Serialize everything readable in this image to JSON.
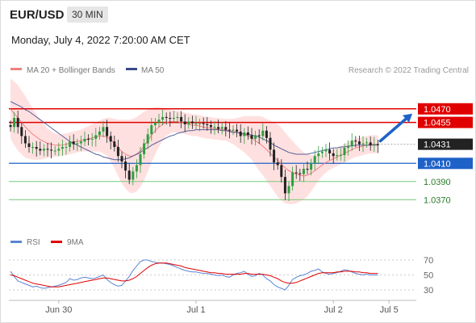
{
  "header": {
    "symbol": "EUR/USD",
    "timeframe": "30 MIN",
    "datetime": "Monday, July 4, 2022 7:20:00 AM CET"
  },
  "legend": {
    "ma20": "MA 20 + Bollinger Bands",
    "ma50": "MA 50",
    "credit": "Research © 2022 Trading Central",
    "rsi": "RSI",
    "ma9": "9MA"
  },
  "colors": {
    "red": "#e00000",
    "blue": "#1e62c8",
    "green": "#7ac77a",
    "band": "#ffdada",
    "ma20": "#f08080",
    "ma50": "#3a4a8c",
    "up": "#2f9e3f",
    "down": "#222222",
    "rsi": "#5b84d6"
  },
  "chart_data": {
    "type": "candlestick",
    "price_axis": {
      "min": 1.034,
      "max": 1.05
    },
    "x_labels": [
      "Jun 30",
      "Jul 1",
      "Jul 2",
      "Jul 5"
    ],
    "levels": [
      {
        "label": "1.0470",
        "value": 1.047,
        "style": "resistance"
      },
      {
        "label": "1.0455",
        "value": 1.0455,
        "style": "resistance"
      },
      {
        "label": "1.0431",
        "value": 1.0431,
        "style": "last"
      },
      {
        "label": "1.0410",
        "value": 1.041,
        "style": "pivot"
      },
      {
        "label": "1.0390",
        "value": 1.039,
        "style": "support"
      },
      {
        "label": "1.0370",
        "value": 1.037,
        "style": "support"
      }
    ],
    "closes": [
      1.045,
      1.046,
      1.045,
      1.044,
      1.0432,
      1.0428,
      1.0428,
      1.0426,
      1.0424,
      1.0426,
      1.0425,
      1.0424,
      1.0424,
      1.0426,
      1.0428,
      1.0428,
      1.0434,
      1.0431,
      1.0432,
      1.0434,
      1.0437,
      1.0436,
      1.0437,
      1.0441,
      1.0445,
      1.045,
      1.044,
      1.0434,
      1.0428,
      1.0418,
      1.0412,
      1.0402,
      1.0392,
      1.0401,
      1.0408,
      1.042,
      1.0432,
      1.0442,
      1.0452,
      1.0455,
      1.0458,
      1.0461,
      1.046,
      1.0459,
      1.046,
      1.0461,
      1.0456,
      1.0453,
      1.0456,
      1.0454,
      1.0454,
      1.0454,
      1.0453,
      1.0452,
      1.045,
      1.045,
      1.0448,
      1.045,
      1.0447,
      1.0446,
      1.0447,
      1.0445,
      1.044,
      1.0444,
      1.0441,
      1.0437,
      1.0441,
      1.044,
      1.0446,
      1.0438,
      1.0425,
      1.0411,
      1.0408,
      1.0395,
      1.0377,
      1.0385,
      1.04,
      1.0399,
      1.0398,
      1.0404,
      1.0403,
      1.041,
      1.0418,
      1.0421,
      1.0423,
      1.0425,
      1.0421,
      1.0418,
      1.0419,
      1.0419,
      1.0427,
      1.0429,
      1.0435,
      1.0434,
      1.0431,
      1.0432,
      1.0433,
      1.043,
      1.0431,
      1.043
    ],
    "ma20": [
      1.047,
      1.0465,
      1.046,
      1.0455,
      1.045,
      1.0446,
      1.0442,
      1.0439,
      1.0436,
      1.0434,
      1.0432,
      1.0431,
      1.043,
      1.043,
      1.043,
      1.0431,
      1.0432,
      1.0433,
      1.0434,
      1.0435,
      1.0436,
      1.0437,
      1.0438,
      1.0439,
      1.044,
      1.044,
      1.0439,
      1.0436,
      1.0432,
      1.0427,
      1.0423,
      1.042,
      1.0418,
      1.0418,
      1.042,
      1.0424,
      1.0429,
      1.0435,
      1.0441,
      1.0446,
      1.045,
      1.0453,
      1.0455,
      1.0456,
      1.0456,
      1.0456,
      1.0455,
      1.0454,
      1.0453,
      1.0452,
      1.0452,
      1.0451,
      1.045,
      1.0449,
      1.0449,
      1.0448,
      1.0448,
      1.0447,
      1.0447,
      1.0446,
      1.0445,
      1.0444,
      1.0443,
      1.0442,
      1.044,
      1.0438,
      1.0435,
      1.0432,
      1.0429,
      1.0425,
      1.0421,
      1.0417,
      1.0413,
      1.0409,
      1.0405,
      1.0402,
      1.04,
      1.0398,
      1.0397,
      1.0396,
      1.0397,
      1.0399,
      1.0402,
      1.0405,
      1.0408,
      1.0411,
      1.0413,
      1.0415,
      1.0417,
      1.0419,
      1.0421,
      1.0423,
      1.0425,
      1.0427,
      1.0428,
      1.0429,
      1.043,
      1.0431,
      1.0431,
      1.0431
    ],
    "ma50": [
      1.0478,
      1.0476,
      1.0474,
      1.0472,
      1.0469,
      1.0467,
      1.0464,
      1.0461,
      1.0458,
      1.0455,
      1.0452,
      1.0449,
      1.0446,
      1.0443,
      1.044,
      1.0437,
      1.0434,
      1.0432,
      1.043,
      1.0428,
      1.0426,
      1.0424,
      1.0422,
      1.042,
      1.0419,
      1.0417,
      1.0416,
      1.0415,
      1.0414,
      1.0414,
      1.0414,
      1.0415,
      1.0416,
      1.0418,
      1.042,
      1.0422,
      1.0425,
      1.0427,
      1.043,
      1.0432,
      1.0434,
      1.0436,
      1.0438,
      1.044,
      1.0441,
      1.0443,
      1.0444,
      1.0445,
      1.0446,
      1.0446,
      1.0447,
      1.0447,
      1.0447,
      1.0447,
      1.0447,
      1.0447,
      1.0447,
      1.0446,
      1.0446,
      1.0445,
      1.0444,
      1.0444,
      1.0443,
      1.0442,
      1.0442,
      1.0441,
      1.044,
      1.0439,
      1.0437,
      1.0435,
      1.0433,
      1.043,
      1.0428,
      1.0426,
      1.0424,
      1.0422,
      1.0421,
      1.042,
      1.042,
      1.042,
      1.042,
      1.0421,
      1.0422,
      1.0423,
      1.0424,
      1.0425,
      1.0426,
      1.0427,
      1.0427,
      1.0428,
      1.0428,
      1.0429,
      1.0429,
      1.043,
      1.043,
      1.043,
      1.043,
      1.043,
      1.043,
      1.043
    ],
    "boll_width": [
      0.0033,
      0.0035,
      0.0036,
      0.0035,
      0.0034,
      0.0031,
      0.0028,
      0.0025,
      0.0022,
      0.0019,
      0.0016,
      0.0014,
      0.0013,
      0.0012,
      0.0012,
      0.0012,
      0.0012,
      0.0012,
      0.0012,
      0.0012,
      0.0013,
      0.0014,
      0.0015,
      0.0016,
      0.0017,
      0.0019,
      0.0021,
      0.0024,
      0.0027,
      0.0031,
      0.0035,
      0.0038,
      0.004,
      0.0041,
      0.0041,
      0.004,
      0.0038,
      0.0034,
      0.003,
      0.0026,
      0.0022,
      0.0018,
      0.0015,
      0.0013,
      0.0012,
      0.0012,
      0.0012,
      0.0012,
      0.0012,
      0.0012,
      0.0012,
      0.0012,
      0.0012,
      0.0012,
      0.0012,
      0.0012,
      0.0012,
      0.0012,
      0.0012,
      0.0013,
      0.0014,
      0.0016,
      0.0018,
      0.002,
      0.0022,
      0.0024,
      0.0027,
      0.003,
      0.0032,
      0.0034,
      0.0036,
      0.0038,
      0.004,
      0.004,
      0.0039,
      0.0037,
      0.0035,
      0.0032,
      0.0029,
      0.0026,
      0.0023,
      0.002,
      0.0017,
      0.0014,
      0.0012,
      0.0011,
      0.001,
      0.001,
      0.001,
      0.001,
      0.001,
      0.001,
      0.001,
      0.001,
      0.001,
      0.001,
      0.001,
      0.001,
      0.001,
      0.001
    ],
    "rsi": {
      "axis": [
        30,
        70
      ],
      "ticks": [
        "70",
        "50",
        "30"
      ],
      "rsi": [
        55,
        48,
        42,
        40,
        38,
        36,
        34,
        35,
        33,
        32,
        33,
        34,
        35,
        36,
        38,
        40,
        45,
        43,
        44,
        46,
        47,
        46,
        45,
        46,
        48,
        50,
        44,
        40,
        37,
        35,
        36,
        42,
        48,
        56,
        62,
        68,
        70,
        70,
        68,
        67,
        66,
        66,
        65,
        64,
        62,
        60,
        58,
        56,
        55,
        54,
        54,
        53,
        52,
        52,
        51,
        50,
        49,
        50,
        48,
        47,
        50,
        52,
        53,
        55,
        51,
        48,
        49,
        52,
        50,
        45,
        42,
        37,
        34,
        32,
        30,
        36,
        44,
        47,
        49,
        50,
        52,
        55,
        56,
        58,
        54,
        52,
        51,
        52,
        53,
        55,
        57,
        56,
        54,
        52,
        51,
        50,
        51,
        50,
        50,
        50
      ],
      "ma9": [
        50,
        49,
        47,
        45,
        43,
        41,
        39,
        38,
        37,
        36,
        35,
        34,
        34,
        34,
        35,
        36,
        37,
        38,
        39,
        40,
        41,
        42,
        43,
        44,
        45,
        46,
        46,
        45,
        44,
        43,
        42,
        42,
        43,
        45,
        48,
        52,
        56,
        60,
        63,
        65,
        66,
        66,
        66,
        65,
        64,
        63,
        62,
        60,
        59,
        58,
        57,
        56,
        55,
        54,
        53,
        53,
        52,
        52,
        51,
        51,
        51,
        51,
        51,
        52,
        52,
        51,
        51,
        51,
        51,
        50,
        49,
        47,
        45,
        42,
        40,
        39,
        39,
        40,
        42,
        44,
        46,
        48,
        50,
        52,
        53,
        53,
        53,
        53,
        54,
        54,
        55,
        55,
        55,
        54,
        54,
        53,
        53,
        52,
        52,
        52
      ]
    }
  }
}
